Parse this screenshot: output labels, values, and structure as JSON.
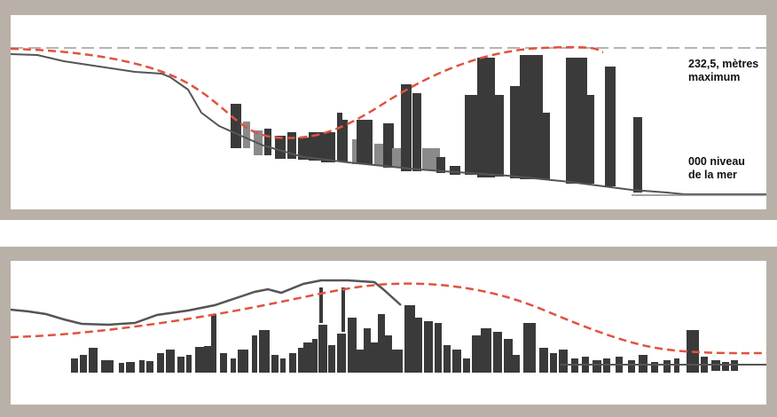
{
  "labels": {
    "max_line1": "232,5, mètres",
    "max_line2": "maximum",
    "sea_line1": "000 niveau",
    "sea_line2": "de la mer"
  },
  "colors": {
    "frame": "#b9b1a7",
    "building": "#3a3a3a",
    "building_light": "#8a8a8a",
    "terrain": "#555555",
    "curve": "#e0533f",
    "reference_line": "#b4b4b4"
  }
}
